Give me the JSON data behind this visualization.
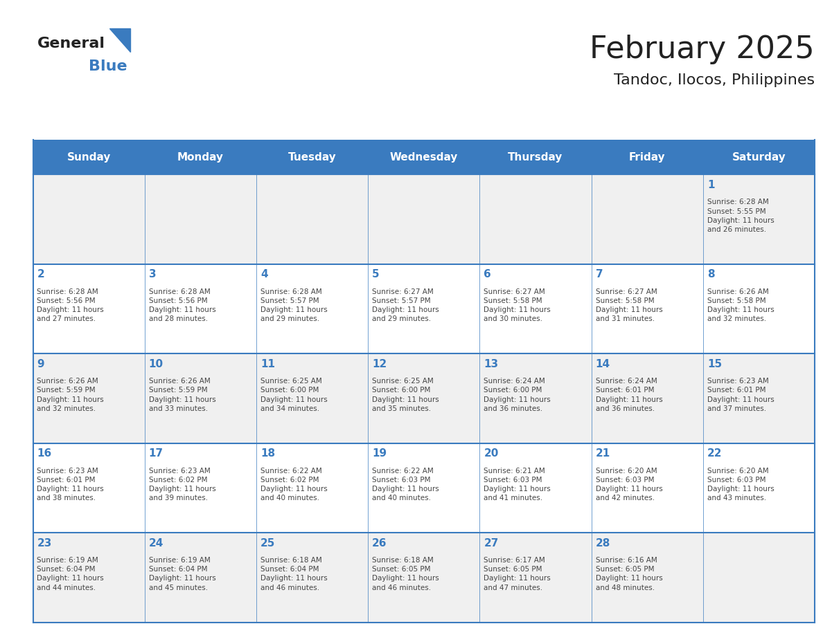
{
  "title": "February 2025",
  "subtitle": "Tandoc, Ilocos, Philippines",
  "header_bg_color": "#3a7bbf",
  "header_text_color": "#ffffff",
  "days_of_week": [
    "Sunday",
    "Monday",
    "Tuesday",
    "Wednesday",
    "Thursday",
    "Friday",
    "Saturday"
  ],
  "row_bg_even": "#f0f0f0",
  "row_bg_odd": "#ffffff",
  "cell_border_color": "#3a7bbf",
  "day_num_color": "#3a7bbf",
  "info_text_color": "#444444",
  "calendar_data": [
    [
      {
        "day": null,
        "sunrise": null,
        "sunset": null,
        "daylight": null
      },
      {
        "day": null,
        "sunrise": null,
        "sunset": null,
        "daylight": null
      },
      {
        "day": null,
        "sunrise": null,
        "sunset": null,
        "daylight": null
      },
      {
        "day": null,
        "sunrise": null,
        "sunset": null,
        "daylight": null
      },
      {
        "day": null,
        "sunrise": null,
        "sunset": null,
        "daylight": null
      },
      {
        "day": null,
        "sunrise": null,
        "sunset": null,
        "daylight": null
      },
      {
        "day": 1,
        "sunrise": "6:28 AM",
        "sunset": "5:55 PM",
        "daylight": "11 hours\nand 26 minutes."
      }
    ],
    [
      {
        "day": 2,
        "sunrise": "6:28 AM",
        "sunset": "5:56 PM",
        "daylight": "11 hours\nand 27 minutes."
      },
      {
        "day": 3,
        "sunrise": "6:28 AM",
        "sunset": "5:56 PM",
        "daylight": "11 hours\nand 28 minutes."
      },
      {
        "day": 4,
        "sunrise": "6:28 AM",
        "sunset": "5:57 PM",
        "daylight": "11 hours\nand 29 minutes."
      },
      {
        "day": 5,
        "sunrise": "6:27 AM",
        "sunset": "5:57 PM",
        "daylight": "11 hours\nand 29 minutes."
      },
      {
        "day": 6,
        "sunrise": "6:27 AM",
        "sunset": "5:58 PM",
        "daylight": "11 hours\nand 30 minutes."
      },
      {
        "day": 7,
        "sunrise": "6:27 AM",
        "sunset": "5:58 PM",
        "daylight": "11 hours\nand 31 minutes."
      },
      {
        "day": 8,
        "sunrise": "6:26 AM",
        "sunset": "5:58 PM",
        "daylight": "11 hours\nand 32 minutes."
      }
    ],
    [
      {
        "day": 9,
        "sunrise": "6:26 AM",
        "sunset": "5:59 PM",
        "daylight": "11 hours\nand 32 minutes."
      },
      {
        "day": 10,
        "sunrise": "6:26 AM",
        "sunset": "5:59 PM",
        "daylight": "11 hours\nand 33 minutes."
      },
      {
        "day": 11,
        "sunrise": "6:25 AM",
        "sunset": "6:00 PM",
        "daylight": "11 hours\nand 34 minutes."
      },
      {
        "day": 12,
        "sunrise": "6:25 AM",
        "sunset": "6:00 PM",
        "daylight": "11 hours\nand 35 minutes."
      },
      {
        "day": 13,
        "sunrise": "6:24 AM",
        "sunset": "6:00 PM",
        "daylight": "11 hours\nand 36 minutes."
      },
      {
        "day": 14,
        "sunrise": "6:24 AM",
        "sunset": "6:01 PM",
        "daylight": "11 hours\nand 36 minutes."
      },
      {
        "day": 15,
        "sunrise": "6:23 AM",
        "sunset": "6:01 PM",
        "daylight": "11 hours\nand 37 minutes."
      }
    ],
    [
      {
        "day": 16,
        "sunrise": "6:23 AM",
        "sunset": "6:01 PM",
        "daylight": "11 hours\nand 38 minutes."
      },
      {
        "day": 17,
        "sunrise": "6:23 AM",
        "sunset": "6:02 PM",
        "daylight": "11 hours\nand 39 minutes."
      },
      {
        "day": 18,
        "sunrise": "6:22 AM",
        "sunset": "6:02 PM",
        "daylight": "11 hours\nand 40 minutes."
      },
      {
        "day": 19,
        "sunrise": "6:22 AM",
        "sunset": "6:03 PM",
        "daylight": "11 hours\nand 40 minutes."
      },
      {
        "day": 20,
        "sunrise": "6:21 AM",
        "sunset": "6:03 PM",
        "daylight": "11 hours\nand 41 minutes."
      },
      {
        "day": 21,
        "sunrise": "6:20 AM",
        "sunset": "6:03 PM",
        "daylight": "11 hours\nand 42 minutes."
      },
      {
        "day": 22,
        "sunrise": "6:20 AM",
        "sunset": "6:03 PM",
        "daylight": "11 hours\nand 43 minutes."
      }
    ],
    [
      {
        "day": 23,
        "sunrise": "6:19 AM",
        "sunset": "6:04 PM",
        "daylight": "11 hours\nand 44 minutes."
      },
      {
        "day": 24,
        "sunrise": "6:19 AM",
        "sunset": "6:04 PM",
        "daylight": "11 hours\nand 45 minutes."
      },
      {
        "day": 25,
        "sunrise": "6:18 AM",
        "sunset": "6:04 PM",
        "daylight": "11 hours\nand 46 minutes."
      },
      {
        "day": 26,
        "sunrise": "6:18 AM",
        "sunset": "6:05 PM",
        "daylight": "11 hours\nand 46 minutes."
      },
      {
        "day": 27,
        "sunrise": "6:17 AM",
        "sunset": "6:05 PM",
        "daylight": "11 hours\nand 47 minutes."
      },
      {
        "day": 28,
        "sunrise": "6:16 AM",
        "sunset": "6:05 PM",
        "daylight": "11 hours\nand 48 minutes."
      },
      {
        "day": null,
        "sunrise": null,
        "sunset": null,
        "daylight": null
      }
    ]
  ]
}
